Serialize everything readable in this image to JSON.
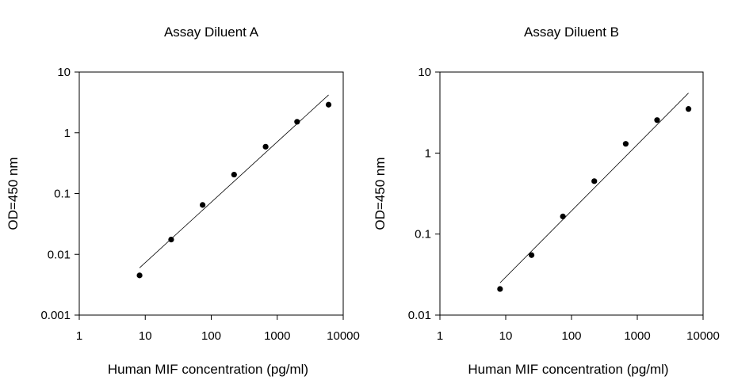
{
  "chart_data": [
    {
      "type": "scatter",
      "title": "Assay Diluent A",
      "xlabel": "Human MIF concentration (pg/ml)",
      "ylabel": "OD=450 nm",
      "x_scale": "log",
      "y_scale": "log",
      "xlim": [
        1,
        10000
      ],
      "ylim": [
        0.001,
        10
      ],
      "xticks": [
        1,
        10,
        100,
        1000,
        10000
      ],
      "xtick_labels": [
        "1",
        "10",
        "100",
        "1000",
        "10000"
      ],
      "yticks": [
        0.001,
        0.01,
        0.1,
        1,
        10
      ],
      "ytick_labels": [
        "0.001",
        "0.01",
        "0.1",
        "1",
        "10"
      ],
      "grid": false,
      "series": [
        {
          "x": [
            8.2,
            24.7,
            74,
            222,
            667,
            2000,
            6000
          ],
          "y": [
            0.0045,
            0.0175,
            0.065,
            0.205,
            0.59,
            1.52,
            2.9
          ]
        }
      ],
      "fit_line": {
        "x": [
          8.2,
          6000
        ],
        "y": [
          0.006,
          4.2
        ]
      }
    },
    {
      "type": "scatter",
      "title": "Assay Diluent B",
      "xlabel": "Human MIF concentration (pg/ml)",
      "ylabel": "OD=450 nm",
      "x_scale": "log",
      "y_scale": "log",
      "xlim": [
        1,
        10000
      ],
      "ylim": [
        0.01,
        10
      ],
      "xticks": [
        1,
        10,
        100,
        1000,
        10000
      ],
      "xtick_labels": [
        "1",
        "10",
        "100",
        "1000",
        "10000"
      ],
      "yticks": [
        0.01,
        0.1,
        1,
        10
      ],
      "ytick_labels": [
        "0.01",
        "0.1",
        "1",
        "10"
      ],
      "grid": false,
      "series": [
        {
          "x": [
            8.2,
            24.7,
            74,
            222,
            667,
            2000,
            6000
          ],
          "y": [
            0.021,
            0.055,
            0.165,
            0.45,
            1.3,
            2.55,
            3.5
          ]
        }
      ],
      "fit_line": {
        "x": [
          8.2,
          6000
        ],
        "y": [
          0.025,
          5.5
        ]
      }
    }
  ]
}
